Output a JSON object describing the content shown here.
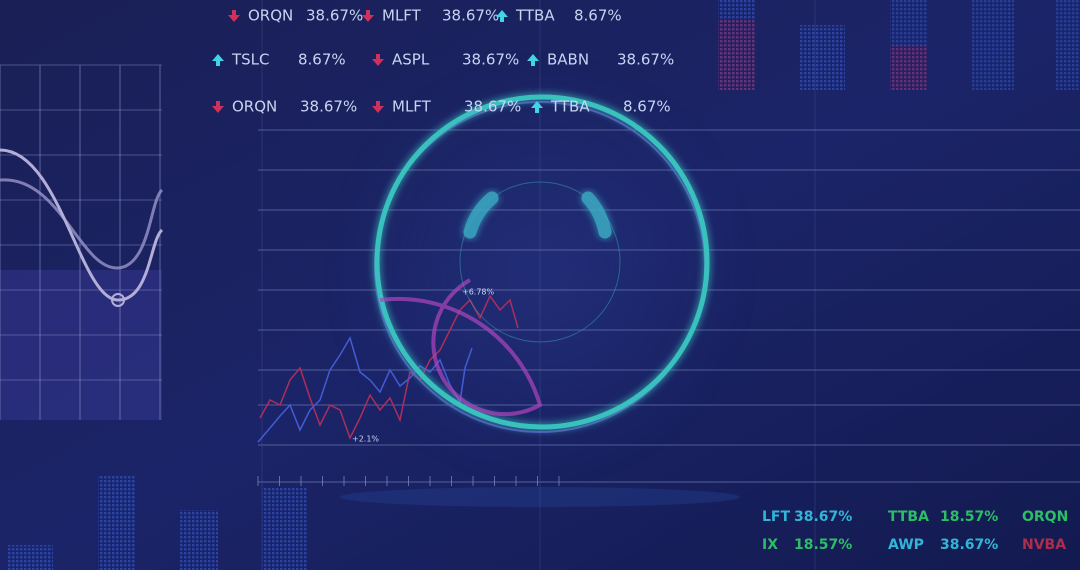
{
  "ticker_rows": [
    [
      {
        "symbol": "ORQN",
        "change": "38.67%",
        "dir": "down"
      },
      {
        "symbol": "MLFT",
        "change": "38.67%",
        "dir": "down"
      },
      {
        "symbol": "TTBA",
        "change": "8.67%",
        "dir": "up"
      }
    ],
    [
      {
        "symbol": "TSLC",
        "change": "8.67%",
        "dir": "up"
      },
      {
        "symbol": "ASPL",
        "change": "38.67%",
        "dir": "down"
      },
      {
        "symbol": "BABN",
        "change": "38.67%",
        "dir": "up"
      }
    ],
    [
      {
        "symbol": "ORQN",
        "change": "38.67%",
        "dir": "down"
      },
      {
        "symbol": "MLFT",
        "change": "38.67%",
        "dir": "down"
      },
      {
        "symbol": "TTBA",
        "change": "8.67%",
        "dir": "up"
      }
    ]
  ],
  "annotations": [
    "+6.78%",
    "+2.1%"
  ],
  "bottom_tickers": [
    [
      {
        "symbol": "LFT",
        "change": "38.67%",
        "color": "#35c7e6"
      },
      {
        "symbol": "TTBA",
        "change": "18.57%",
        "color": "#2fd06a"
      },
      {
        "symbol": "ORQN",
        "color": "#2fd06a"
      }
    ],
    [
      {
        "symbol": "IX",
        "change": "18.57%",
        "color": "#2fd06a"
      },
      {
        "symbol": "AWP",
        "change": "38.67%",
        "color": "#35c7e6"
      },
      {
        "symbol": "NVBA",
        "color": "#c0304a"
      }
    ]
  ]
}
